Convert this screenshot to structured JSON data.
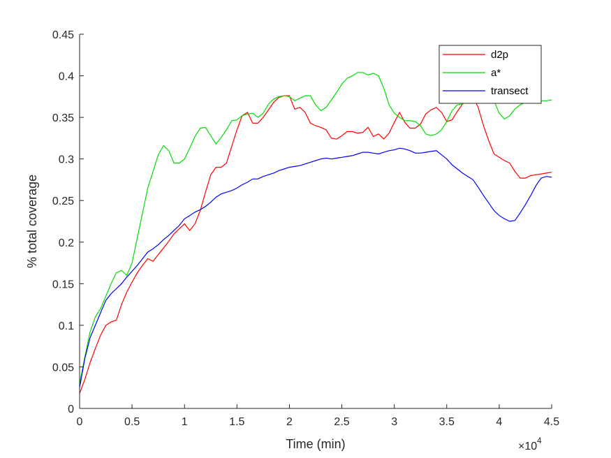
{
  "chart_data": {
    "type": "line",
    "xlabel": "Time (min)",
    "ylabel": "% total coverage",
    "x_exponent_label": "×10",
    "x_exponent_power": "4",
    "xlim": [
      0,
      45000
    ],
    "ylim": [
      0,
      0.45
    ],
    "x_ticks": [
      0,
      5000,
      10000,
      15000,
      20000,
      25000,
      30000,
      35000,
      40000,
      45000
    ],
    "x_tick_labels": [
      "0",
      "0.5",
      "1",
      "1.5",
      "2",
      "2.5",
      "3",
      "3.5",
      "4",
      "4.5"
    ],
    "y_ticks": [
      0,
      0.05,
      0.1,
      0.15,
      0.2,
      0.25,
      0.3,
      0.35,
      0.4,
      0.45
    ],
    "y_tick_labels": [
      "0",
      "0.05",
      "0.1",
      "0.15",
      "0.2",
      "0.25",
      "0.3",
      "0.35",
      "0.4",
      "0.45"
    ],
    "grid": false,
    "legend_position": "top-right",
    "series": [
      {
        "name": "d2p",
        "color": "#ff0000",
        "x": [
          0,
          500,
          1000,
          1500,
          2000,
          2500,
          3000,
          3500,
          4000,
          4500,
          5000,
          5500,
          6000,
          6500,
          7000,
          7500,
          8000,
          8500,
          9000,
          9500,
          10000,
          10500,
          11000,
          11500,
          12000,
          12500,
          13000,
          13500,
          14000,
          14500,
          15000,
          15500,
          16000,
          16500,
          17000,
          17500,
          18000,
          18500,
          19000,
          19500,
          20000,
          20500,
          21000,
          21500,
          22000,
          22500,
          23000,
          23500,
          24000,
          24500,
          25000,
          25500,
          26000,
          26500,
          27000,
          27500,
          28000,
          28500,
          29000,
          29500,
          30000,
          30500,
          31000,
          31500,
          32000,
          32500,
          33000,
          33500,
          34000,
          34500,
          35000,
          35500,
          36000,
          36500,
          37000,
          37500,
          38000,
          38500,
          39000,
          39500,
          40000,
          40500,
          41000,
          41500,
          42000,
          42500,
          43000,
          43500,
          44000,
          44500,
          45000
        ],
        "y": [
          0.018,
          0.035,
          0.055,
          0.072,
          0.088,
          0.1,
          0.104,
          0.106,
          0.125,
          0.14,
          0.152,
          0.163,
          0.172,
          0.18,
          0.177,
          0.185,
          0.193,
          0.201,
          0.21,
          0.216,
          0.222,
          0.214,
          0.222,
          0.238,
          0.26,
          0.281,
          0.29,
          0.29,
          0.295,
          0.315,
          0.335,
          0.352,
          0.356,
          0.343,
          0.343,
          0.35,
          0.359,
          0.368,
          0.374,
          0.376,
          0.376,
          0.36,
          0.362,
          0.356,
          0.343,
          0.34,
          0.338,
          0.335,
          0.325,
          0.324,
          0.328,
          0.333,
          0.333,
          0.331,
          0.332,
          0.338,
          0.327,
          0.33,
          0.324,
          0.331,
          0.344,
          0.356,
          0.344,
          0.337,
          0.337,
          0.342,
          0.354,
          0.359,
          0.362,
          0.356,
          0.345,
          0.347,
          0.357,
          0.366,
          0.374,
          0.375,
          0.362,
          0.34,
          0.322,
          0.306,
          0.302,
          0.298,
          0.295,
          0.285,
          0.277,
          0.277,
          0.28,
          0.281,
          0.282,
          0.283,
          0.284
        ]
      },
      {
        "name": "a*",
        "color": "#00dd00",
        "x": [
          0,
          500,
          1000,
          1500,
          2000,
          2500,
          3000,
          3500,
          4000,
          4500,
          5000,
          5500,
          6000,
          6500,
          7000,
          7500,
          8000,
          8500,
          9000,
          9500,
          10000,
          10500,
          11000,
          11500,
          12000,
          12500,
          13000,
          13500,
          14000,
          14500,
          15000,
          15500,
          16000,
          16500,
          17000,
          17500,
          18000,
          18500,
          19000,
          19500,
          20000,
          20500,
          21000,
          21500,
          22000,
          22500,
          23000,
          23500,
          24000,
          24500,
          25000,
          25500,
          26000,
          26500,
          27000,
          27500,
          28000,
          28500,
          29000,
          29500,
          30000,
          30500,
          31000,
          31500,
          32000,
          32500,
          33000,
          33500,
          34000,
          34500,
          35000,
          35500,
          36000,
          36500,
          37000,
          37500,
          38000,
          38500,
          39000,
          39500,
          40000,
          40500,
          41000,
          41500,
          42000,
          42500,
          43000,
          43500,
          44000,
          44500,
          45000
        ],
        "y": [
          0.03,
          0.062,
          0.092,
          0.11,
          0.12,
          0.135,
          0.15,
          0.163,
          0.166,
          0.16,
          0.175,
          0.205,
          0.235,
          0.265,
          0.285,
          0.305,
          0.316,
          0.31,
          0.295,
          0.295,
          0.3,
          0.313,
          0.327,
          0.337,
          0.338,
          0.328,
          0.318,
          0.326,
          0.335,
          0.346,
          0.347,
          0.352,
          0.354,
          0.355,
          0.35,
          0.355,
          0.366,
          0.372,
          0.375,
          0.376,
          0.375,
          0.37,
          0.373,
          0.376,
          0.376,
          0.365,
          0.358,
          0.362,
          0.371,
          0.38,
          0.39,
          0.397,
          0.4,
          0.404,
          0.404,
          0.401,
          0.403,
          0.4,
          0.385,
          0.365,
          0.355,
          0.35,
          0.346,
          0.346,
          0.345,
          0.34,
          0.33,
          0.328,
          0.33,
          0.335,
          0.345,
          0.358,
          0.365,
          0.366,
          0.37,
          0.37,
          0.375,
          0.38,
          0.375,
          0.37,
          0.355,
          0.348,
          0.352,
          0.36,
          0.365,
          0.368,
          0.37,
          0.37,
          0.37,
          0.37,
          0.371
        ]
      },
      {
        "name": "transect",
        "color": "#0000ff",
        "x": [
          0,
          500,
          1000,
          1500,
          2000,
          2500,
          3000,
          3500,
          4000,
          4500,
          5000,
          5500,
          6000,
          6500,
          7000,
          7500,
          8000,
          8500,
          9000,
          9500,
          10000,
          10500,
          11000,
          11500,
          12000,
          12500,
          13000,
          13500,
          14000,
          14500,
          15000,
          15500,
          16000,
          16500,
          17000,
          17500,
          18000,
          18500,
          19000,
          19500,
          20000,
          20500,
          21000,
          21500,
          22000,
          22500,
          23000,
          23500,
          24000,
          24500,
          25000,
          25500,
          26000,
          26500,
          27000,
          27500,
          28000,
          28500,
          29000,
          29500,
          30000,
          30500,
          31000,
          31500,
          32000,
          32500,
          33000,
          33500,
          34000,
          34500,
          35000,
          35500,
          36000,
          36500,
          37000,
          37500,
          38000,
          38500,
          39000,
          39500,
          40000,
          40500,
          41000,
          41500,
          42000,
          42500,
          43000,
          43500,
          44000,
          44500,
          45000
        ],
        "y": [
          0.025,
          0.06,
          0.085,
          0.1,
          0.115,
          0.13,
          0.138,
          0.144,
          0.15,
          0.158,
          0.165,
          0.172,
          0.18,
          0.188,
          0.192,
          0.197,
          0.203,
          0.208,
          0.214,
          0.22,
          0.228,
          0.232,
          0.236,
          0.239,
          0.243,
          0.248,
          0.254,
          0.258,
          0.26,
          0.262,
          0.265,
          0.269,
          0.272,
          0.276,
          0.276,
          0.279,
          0.281,
          0.283,
          0.286,
          0.288,
          0.29,
          0.291,
          0.292,
          0.294,
          0.296,
          0.298,
          0.3,
          0.301,
          0.3,
          0.301,
          0.302,
          0.303,
          0.304,
          0.306,
          0.308,
          0.308,
          0.307,
          0.306,
          0.308,
          0.31,
          0.311,
          0.313,
          0.312,
          0.31,
          0.307,
          0.307,
          0.308,
          0.309,
          0.31,
          0.305,
          0.3,
          0.293,
          0.288,
          0.283,
          0.279,
          0.275,
          0.266,
          0.256,
          0.247,
          0.238,
          0.232,
          0.228,
          0.225,
          0.226,
          0.235,
          0.245,
          0.256,
          0.268,
          0.277,
          0.279,
          0.278
        ]
      }
    ]
  }
}
